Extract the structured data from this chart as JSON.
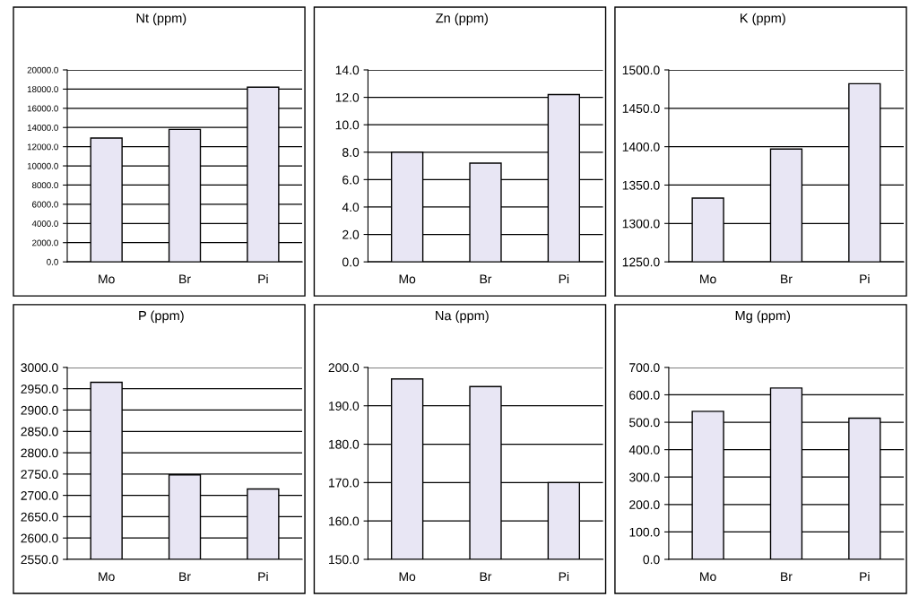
{
  "chart_data": [
    {
      "type": "bar",
      "title": "Nt (ppm)",
      "categories": [
        "Mo",
        "Br",
        "Pi"
      ],
      "values": [
        12900,
        13800,
        18200
      ],
      "color": "#e8e6f4",
      "ylim": [
        0,
        20000
      ],
      "yticks": [
        {
          "value": 0,
          "label": "0.0"
        },
        {
          "value": 2000,
          "label": "2000.0"
        },
        {
          "value": 4000,
          "label": "4000.0"
        },
        {
          "value": 6000,
          "label": "6000.0"
        },
        {
          "value": 8000,
          "label": "8000.0"
        },
        {
          "value": 10000,
          "label": "10000.0"
        },
        {
          "value": 12000,
          "label": "12000.0"
        },
        {
          "value": 14000,
          "label": "14000.0"
        },
        {
          "value": 16000,
          "label": "16000.0"
        },
        {
          "value": 18000,
          "label": "18000.0"
        },
        {
          "value": 20000,
          "label": "20000.0"
        }
      ],
      "grid": "y"
    },
    {
      "type": "bar",
      "title": "Zn (ppm)",
      "categories": [
        "Mo",
        "Br",
        "Pi"
      ],
      "values": [
        8.0,
        7.2,
        12.2
      ],
      "color": "#e8e6f4",
      "ylim": [
        0,
        14
      ],
      "yticks": [
        {
          "value": 0,
          "label": "0.0"
        },
        {
          "value": 2,
          "label": "2.0"
        },
        {
          "value": 4,
          "label": "4.0"
        },
        {
          "value": 6,
          "label": "6.0"
        },
        {
          "value": 8,
          "label": "8.0"
        },
        {
          "value": 10,
          "label": "10.0"
        },
        {
          "value": 12,
          "label": "12.0"
        },
        {
          "value": 14,
          "label": "14.0"
        }
      ],
      "grid": "y"
    },
    {
      "type": "bar",
      "title": "K (ppm)",
      "categories": [
        "Mo",
        "Br",
        "Pi"
      ],
      "values": [
        1333,
        1397,
        1482
      ],
      "color": "#e8e6f4",
      "ylim": [
        1250,
        1500
      ],
      "yticks": [
        {
          "value": 1250,
          "label": "1250.0"
        },
        {
          "value": 1300,
          "label": "1300.0"
        },
        {
          "value": 1350,
          "label": "1350.0"
        },
        {
          "value": 1400,
          "label": "1400.0"
        },
        {
          "value": 1450,
          "label": "1450.0"
        },
        {
          "value": 1500,
          "label": "1500.0"
        }
      ],
      "grid": "y"
    },
    {
      "type": "bar",
      "title": "P (ppm)",
      "categories": [
        "Mo",
        "Br",
        "Pi"
      ],
      "values": [
        2965,
        2748,
        2715
      ],
      "color": "#e8e6f4",
      "ylim": [
        2550,
        3000
      ],
      "yticks": [
        {
          "value": 2550,
          "label": "2550.0"
        },
        {
          "value": 2600,
          "label": "2600.0"
        },
        {
          "value": 2650,
          "label": "2650.0"
        },
        {
          "value": 2700,
          "label": "2700.0"
        },
        {
          "value": 2750,
          "label": "2750.0"
        },
        {
          "value": 2800,
          "label": "2800.0"
        },
        {
          "value": 2850,
          "label": "2850.0"
        },
        {
          "value": 2900,
          "label": "2900.0"
        },
        {
          "value": 2950,
          "label": "2950.0"
        },
        {
          "value": 3000,
          "label": "3000.0"
        }
      ],
      "grid": "y"
    },
    {
      "type": "bar",
      "title": "Na (ppm)",
      "categories": [
        "Mo",
        "Br",
        "Pi"
      ],
      "values": [
        197,
        195,
        170
      ],
      "color": "#e8e6f4",
      "ylim": [
        150,
        200
      ],
      "yticks": [
        {
          "value": 150,
          "label": "150.0"
        },
        {
          "value": 160,
          "label": "160.0"
        },
        {
          "value": 170,
          "label": "170.0"
        },
        {
          "value": 180,
          "label": "180.0"
        },
        {
          "value": 190,
          "label": "190.0"
        },
        {
          "value": 200,
          "label": "200.0"
        }
      ],
      "grid": "y"
    },
    {
      "type": "bar",
      "title": "Mg (ppm)",
      "categories": [
        "Mo",
        "Br",
        "Pi"
      ],
      "values": [
        540,
        625,
        515
      ],
      "color": "#e8e6f4",
      "ylim": [
        0,
        700
      ],
      "yticks": [
        {
          "value": 0,
          "label": "0.0"
        },
        {
          "value": 100,
          "label": "100.0"
        },
        {
          "value": 200,
          "label": "200.0"
        },
        {
          "value": 300,
          "label": "300.0"
        },
        {
          "value": 400,
          "label": "400.0"
        },
        {
          "value": 500,
          "label": "500.0"
        },
        {
          "value": 600,
          "label": "600.0"
        },
        {
          "value": 700,
          "label": "700.0"
        }
      ],
      "grid": "y"
    }
  ]
}
